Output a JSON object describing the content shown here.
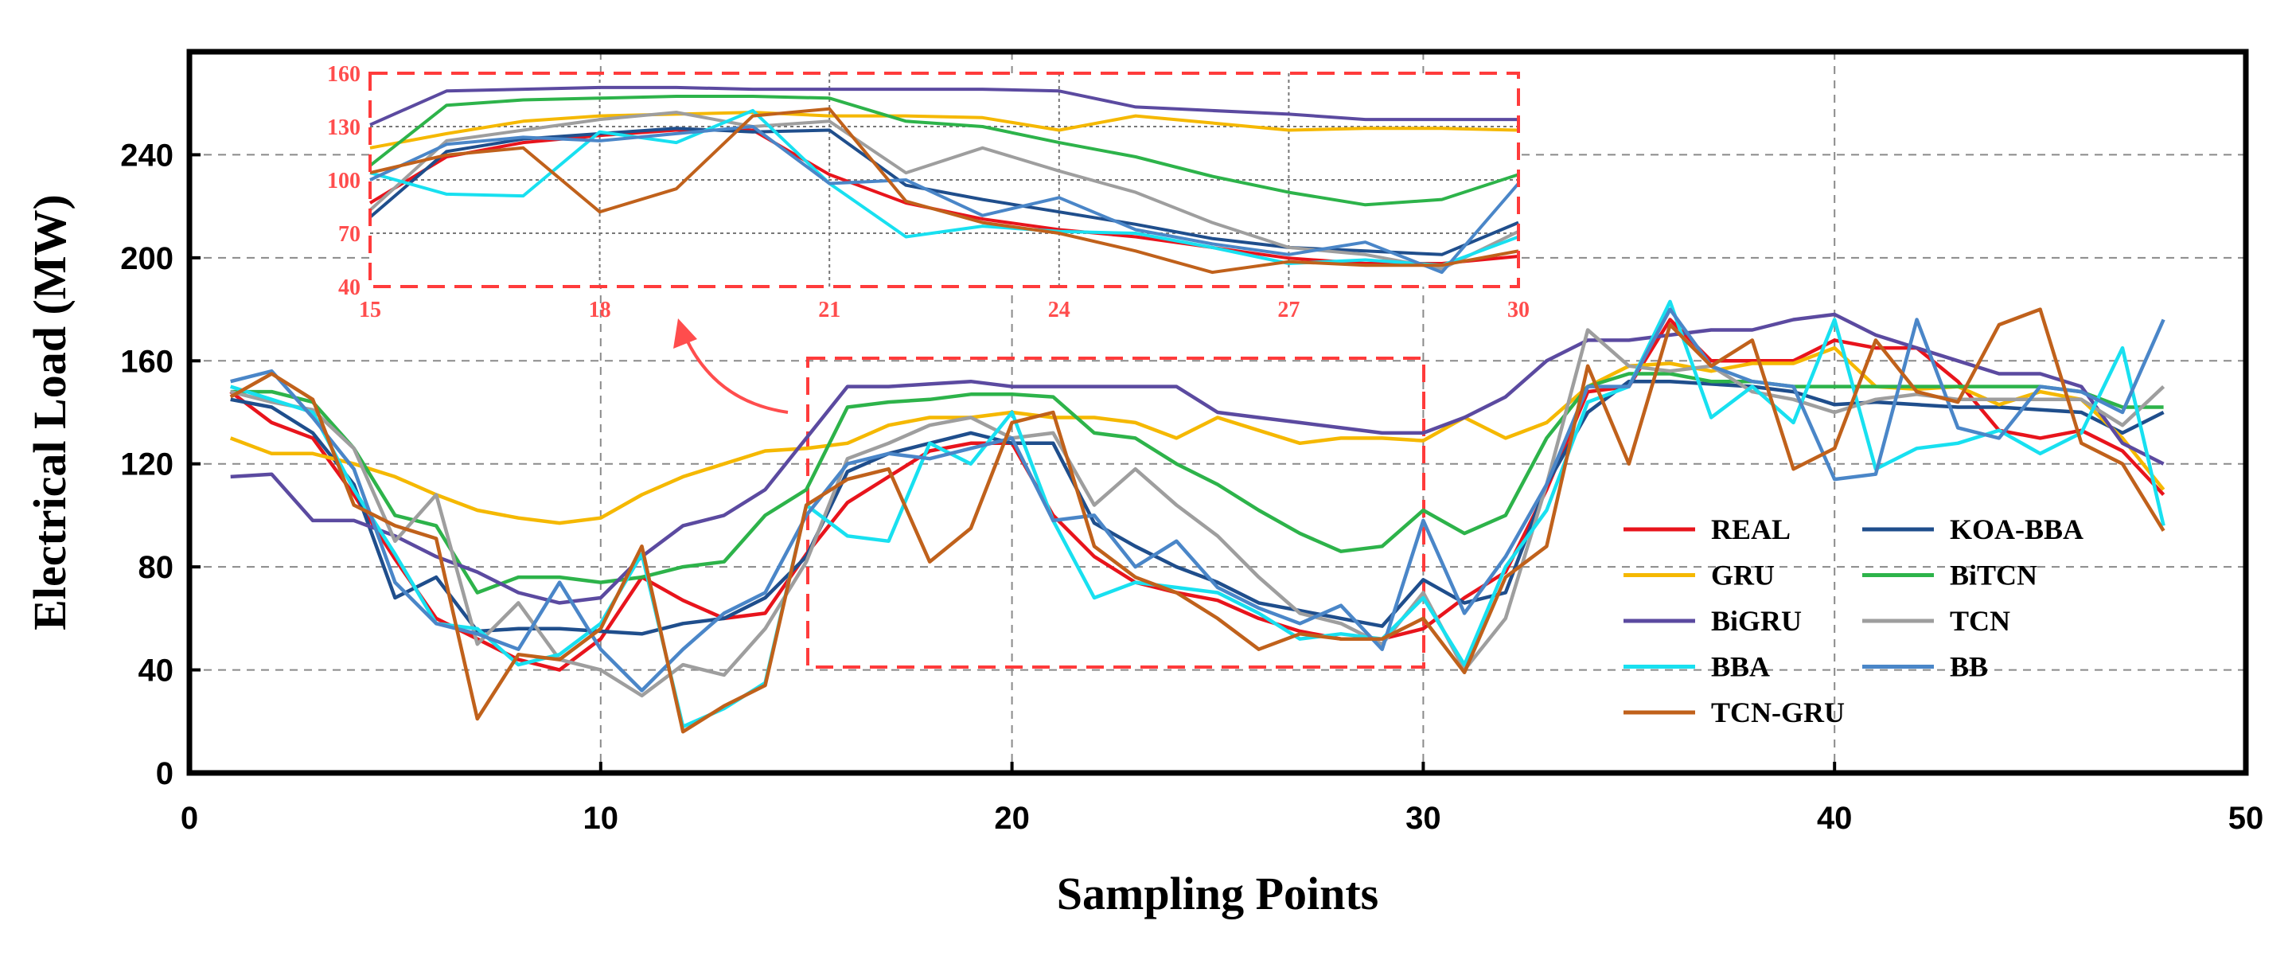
{
  "chart_data": {
    "type": "line",
    "xlabel": "Sampling Points",
    "ylabel": "Electrical Load (MW)",
    "xlim": [
      0,
      50
    ],
    "ylim": [
      0,
      280
    ],
    "xticks": [
      0,
      10,
      20,
      30,
      40,
      50
    ],
    "yticks": [
      0,
      40,
      80,
      120,
      160,
      200,
      240
    ],
    "grid": true,
    "legend_position": "lower-right",
    "x": [
      1,
      2,
      3,
      4,
      5,
      6,
      7,
      8,
      9,
      10,
      11,
      12,
      13,
      14,
      15,
      16,
      17,
      18,
      19,
      20,
      21,
      22,
      23,
      24,
      25,
      26,
      27,
      28,
      29,
      30,
      31,
      32,
      33,
      34,
      35,
      36,
      37,
      38,
      39,
      40,
      41,
      42,
      43,
      44,
      45,
      46,
      47,
      48
    ],
    "series": [
      {
        "name": "REAL",
        "color": "#e8141c",
        "values": [
          148,
          136,
          130,
          108,
          83,
          60,
          52,
          44,
          40,
          52,
          76,
          67,
          60,
          62,
          85,
          105,
          115,
          125,
          128,
          128,
          100,
          84,
          74,
          70,
          67,
          60,
          55,
          52,
          52,
          56,
          68,
          78,
          110,
          148,
          150,
          176,
          160,
          160,
          160,
          168,
          165,
          165,
          152,
          133,
          130,
          133,
          125,
          108
        ]
      },
      {
        "name": "KOA-BBA",
        "color": "#1f4e8c",
        "values": [
          145,
          142,
          132,
          112,
          68,
          76,
          55,
          56,
          56,
          55,
          54,
          58,
          60,
          68,
          84,
          117,
          124,
          128,
          132,
          128,
          128,
          97,
          88,
          80,
          74,
          66,
          63,
          60,
          57,
          75,
          66,
          70,
          112,
          140,
          152,
          152,
          151,
          150,
          148,
          143,
          144,
          143,
          142,
          142,
          141,
          140,
          132,
          140
        ]
      },
      {
        "name": "GRU",
        "color": "#f5b800",
        "values": [
          130,
          124,
          124,
          120,
          115,
          108,
          102,
          99,
          97,
          99,
          108,
          115,
          120,
          125,
          126,
          128,
          135,
          138,
          138,
          140,
          138,
          138,
          136,
          130,
          138,
          133,
          128,
          130,
          130,
          129,
          138,
          130,
          136,
          150,
          158,
          159,
          156,
          159,
          159,
          165,
          150,
          149,
          150,
          143,
          148,
          145,
          130,
          110
        ]
      },
      {
        "name": "BiTCN",
        "color": "#2db34a",
        "values": [
          148,
          148,
          144,
          126,
          100,
          96,
          70,
          76,
          76,
          74,
          76,
          80,
          82,
          100,
          110,
          142,
          144,
          145,
          147,
          147,
          146,
          132,
          130,
          120,
          112,
          102,
          93,
          86,
          88,
          102,
          93,
          100,
          130,
          150,
          155,
          155,
          152,
          152,
          150,
          150,
          150,
          150,
          150,
          150,
          150,
          148,
          142,
          142
        ]
      },
      {
        "name": "BiGRU",
        "color": "#5b4aa0",
        "values": [
          115,
          116,
          98,
          98,
          92,
          84,
          78,
          70,
          66,
          68,
          84,
          96,
          100,
          110,
          130,
          150,
          150,
          151,
          152,
          150,
          150,
          150,
          150,
          150,
          140,
          138,
          136,
          134,
          132,
          132,
          138,
          146,
          160,
          168,
          168,
          170,
          172,
          172,
          176,
          178,
          170,
          165,
          160,
          155,
          155,
          150,
          128,
          120
        ]
      },
      {
        "name": "TCN",
        "color": "#9e9e9e",
        "values": [
          148,
          144,
          141,
          126,
          90,
          108,
          50,
          66,
          44,
          40,
          30,
          42,
          38,
          56,
          82,
          122,
          128,
          135,
          138,
          130,
          132,
          104,
          118,
          104,
          92,
          76,
          62,
          58,
          50,
          70,
          40,
          60,
          112,
          172,
          158,
          156,
          158,
          148,
          145,
          140,
          145,
          147,
          145,
          145,
          145,
          145,
          135,
          150
        ]
      },
      {
        "name": "BBA",
        "color": "#18e0f0",
        "values": [
          150,
          145,
          140,
          110,
          85,
          58,
          56,
          42,
          46,
          58,
          85,
          18,
          25,
          35,
          104,
          92,
          90,
          128,
          120,
          140,
          98,
          68,
          74,
          72,
          70,
          62,
          52,
          54,
          52,
          68,
          42,
          80,
          102,
          144,
          150,
          183,
          138,
          150,
          136,
          176,
          118,
          126,
          128,
          133,
          124,
          132,
          165,
          96
        ]
      },
      {
        "name": "BB",
        "color": "#4a86c8",
        "values": [
          152,
          156,
          138,
          118,
          74,
          58,
          54,
          48,
          74,
          48,
          32,
          48,
          62,
          70,
          100,
          120,
          124,
          122,
          126,
          130,
          98,
          100,
          80,
          90,
          72,
          64,
          58,
          65,
          48,
          98,
          62,
          84,
          112,
          150,
          150,
          180,
          158,
          152,
          150,
          114,
          116,
          176,
          134,
          130,
          150,
          148,
          140,
          176
        ]
      },
      {
        "name": "TCN-GRU",
        "color": "#c0611b",
        "values": [
          146,
          155,
          145,
          104,
          96,
          91,
          21,
          46,
          44,
          56,
          88,
          16,
          26,
          34,
          104,
          114,
          118,
          82,
          95,
          136,
          140,
          88,
          76,
          70,
          60,
          48,
          54,
          52,
          52,
          60,
          39,
          76,
          88,
          158,
          120,
          174,
          158,
          168,
          118,
          126,
          168,
          148,
          144,
          174,
          180,
          128,
          120,
          94
        ]
      }
    ],
    "inset": {
      "xlim": [
        15,
        30
      ],
      "ylim": [
        40,
        160
      ],
      "xticks": [
        15,
        18,
        21,
        24,
        27,
        30
      ],
      "yticks": [
        40,
        70,
        100,
        130,
        160
      ],
      "series": [
        {
          "name": "REAL",
          "values": [
            87,
            113,
            121,
            125,
            128,
            128,
            103,
            87,
            78,
            72,
            68,
            62,
            56,
            53,
            53,
            57
          ]
        },
        {
          "name": "KOA-BBA",
          "values": [
            79,
            116,
            123,
            126,
            129,
            127,
            128,
            97,
            89,
            82,
            75,
            67,
            62,
            60,
            58,
            76
          ]
        },
        {
          "name": "GRU",
          "values": [
            118,
            126,
            133,
            136,
            137,
            138,
            136,
            136,
            135,
            128,
            136,
            132,
            128,
            129,
            129,
            128
          ]
        },
        {
          "name": "BiTCN",
          "values": [
            108,
            142,
            145,
            146,
            147,
            147,
            146,
            133,
            130,
            121,
            113,
            102,
            93,
            86,
            89,
            103
          ]
        },
        {
          "name": "BiGRU",
          "values": [
            131,
            150,
            151,
            152,
            152,
            151,
            151,
            151,
            151,
            150,
            141,
            139,
            137,
            134,
            134,
            134
          ]
        },
        {
          "name": "TCN",
          "values": [
            83,
            122,
            128,
            134,
            138,
            130,
            133,
            104,
            118,
            105,
            93,
            76,
            62,
            58,
            50,
            71
          ]
        },
        {
          "name": "BBA",
          "values": [
            104,
            92,
            91,
            127,
            121,
            139,
            98,
            68,
            74,
            71,
            70,
            62,
            53,
            55,
            52,
            68
          ]
        },
        {
          "name": "BB",
          "values": [
            100,
            120,
            124,
            122,
            126,
            130,
            98,
            100,
            80,
            90,
            72,
            64,
            58,
            65,
            48,
            98
          ]
        },
        {
          "name": "TCN-GRU",
          "values": [
            104,
            114,
            118,
            82,
            95,
            136,
            140,
            88,
            76,
            70,
            60,
            48,
            54,
            52,
            52,
            60
          ]
        }
      ]
    }
  }
}
